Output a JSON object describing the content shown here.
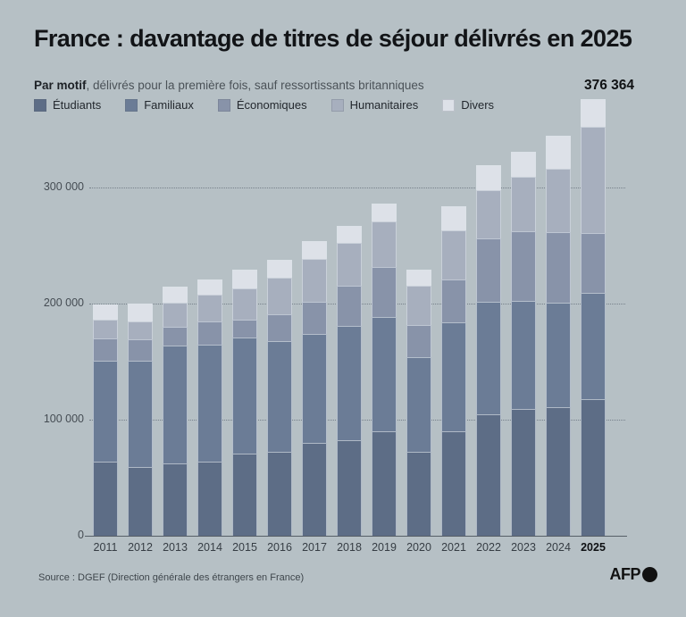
{
  "header": {
    "title": "France : davantage de titres de séjour délivrés en 2025",
    "subtitle_bold": "Par motif",
    "subtitle_rest": ", délivrés pour la première fois, sauf ressortissants britanniques",
    "peak_value_label": "376 364"
  },
  "colors": {
    "background": "#b6c0c5",
    "etudiants": "#5d6d86",
    "familiaux": "#6b7c96",
    "economiques": "#8893a9",
    "humanitaires": "#a7afbe",
    "divers": "#dde1e8"
  },
  "chart_data": {
    "type": "bar",
    "subtype": "stacked",
    "title": "France : davantage de titres de séjour délivrés en 2025",
    "subtitle": "Par motif, délivrés pour la première fois, sauf ressortissants britanniques",
    "categories": [
      "2011",
      "2012",
      "2013",
      "2014",
      "2015",
      "2016",
      "2017",
      "2018",
      "2019",
      "2020",
      "2021",
      "2022",
      "2023",
      "2024",
      "2025"
    ],
    "series": [
      {
        "name": "Étudiants",
        "color": "#5d6d86",
        "values": [
          64000,
          59500,
          62000,
          64000,
          70500,
          72500,
          80000,
          82500,
          90000,
          72500,
          90000,
          104500,
          109000,
          111000,
          118000
        ]
      },
      {
        "name": "Familiaux",
        "color": "#6b7c96",
        "values": [
          87000,
          91500,
          101500,
          100500,
          100000,
          95500,
          93500,
          98500,
          98500,
          81500,
          93500,
          97000,
          93500,
          89500,
          91000
        ]
      },
      {
        "name": "Économiques",
        "color": "#8893a9",
        "values": [
          19000,
          18000,
          16500,
          20500,
          15500,
          23000,
          28000,
          34500,
          43000,
          27500,
          37000,
          55000,
          60000,
          61000,
          51500
        ]
      },
      {
        "name": "Humanitaires",
        "color": "#a7afbe",
        "values": [
          16000,
          16000,
          20500,
          22500,
          27000,
          31000,
          37000,
          36500,
          39000,
          34000,
          42500,
          41500,
          46500,
          54500,
          91500
        ]
      },
      {
        "name": "Divers",
        "color": "#dde1e8",
        "values": [
          13000,
          15000,
          14000,
          13500,
          16500,
          15500,
          15500,
          15000,
          16000,
          14000,
          20500,
          21500,
          21500,
          29000,
          24364
        ]
      }
    ],
    "totals": [
      199000,
      200000,
      214500,
      221000,
      229500,
      237500,
      254000,
      267000,
      286500,
      229500,
      283500,
      319500,
      330500,
      345000,
      376364
    ],
    "annotation": {
      "text": "376 364",
      "category": "2025",
      "position": "above-last-bar"
    },
    "y_ticks": [
      {
        "label": "0",
        "value": 0
      },
      {
        "label": "100 000",
        "value": 100000
      },
      {
        "label": "200 000",
        "value": 200000
      },
      {
        "label": "300 000",
        "value": 300000
      }
    ],
    "ylim": [
      0,
      400000
    ],
    "xlabel": "",
    "ylabel": "",
    "grid": "horizontal-dotted",
    "legend_position": "top-left",
    "highlighted_category": "2025"
  },
  "footer": {
    "source": "Source : DGEF (Direction générale des étrangers en France)",
    "logo_text": "AFP"
  }
}
